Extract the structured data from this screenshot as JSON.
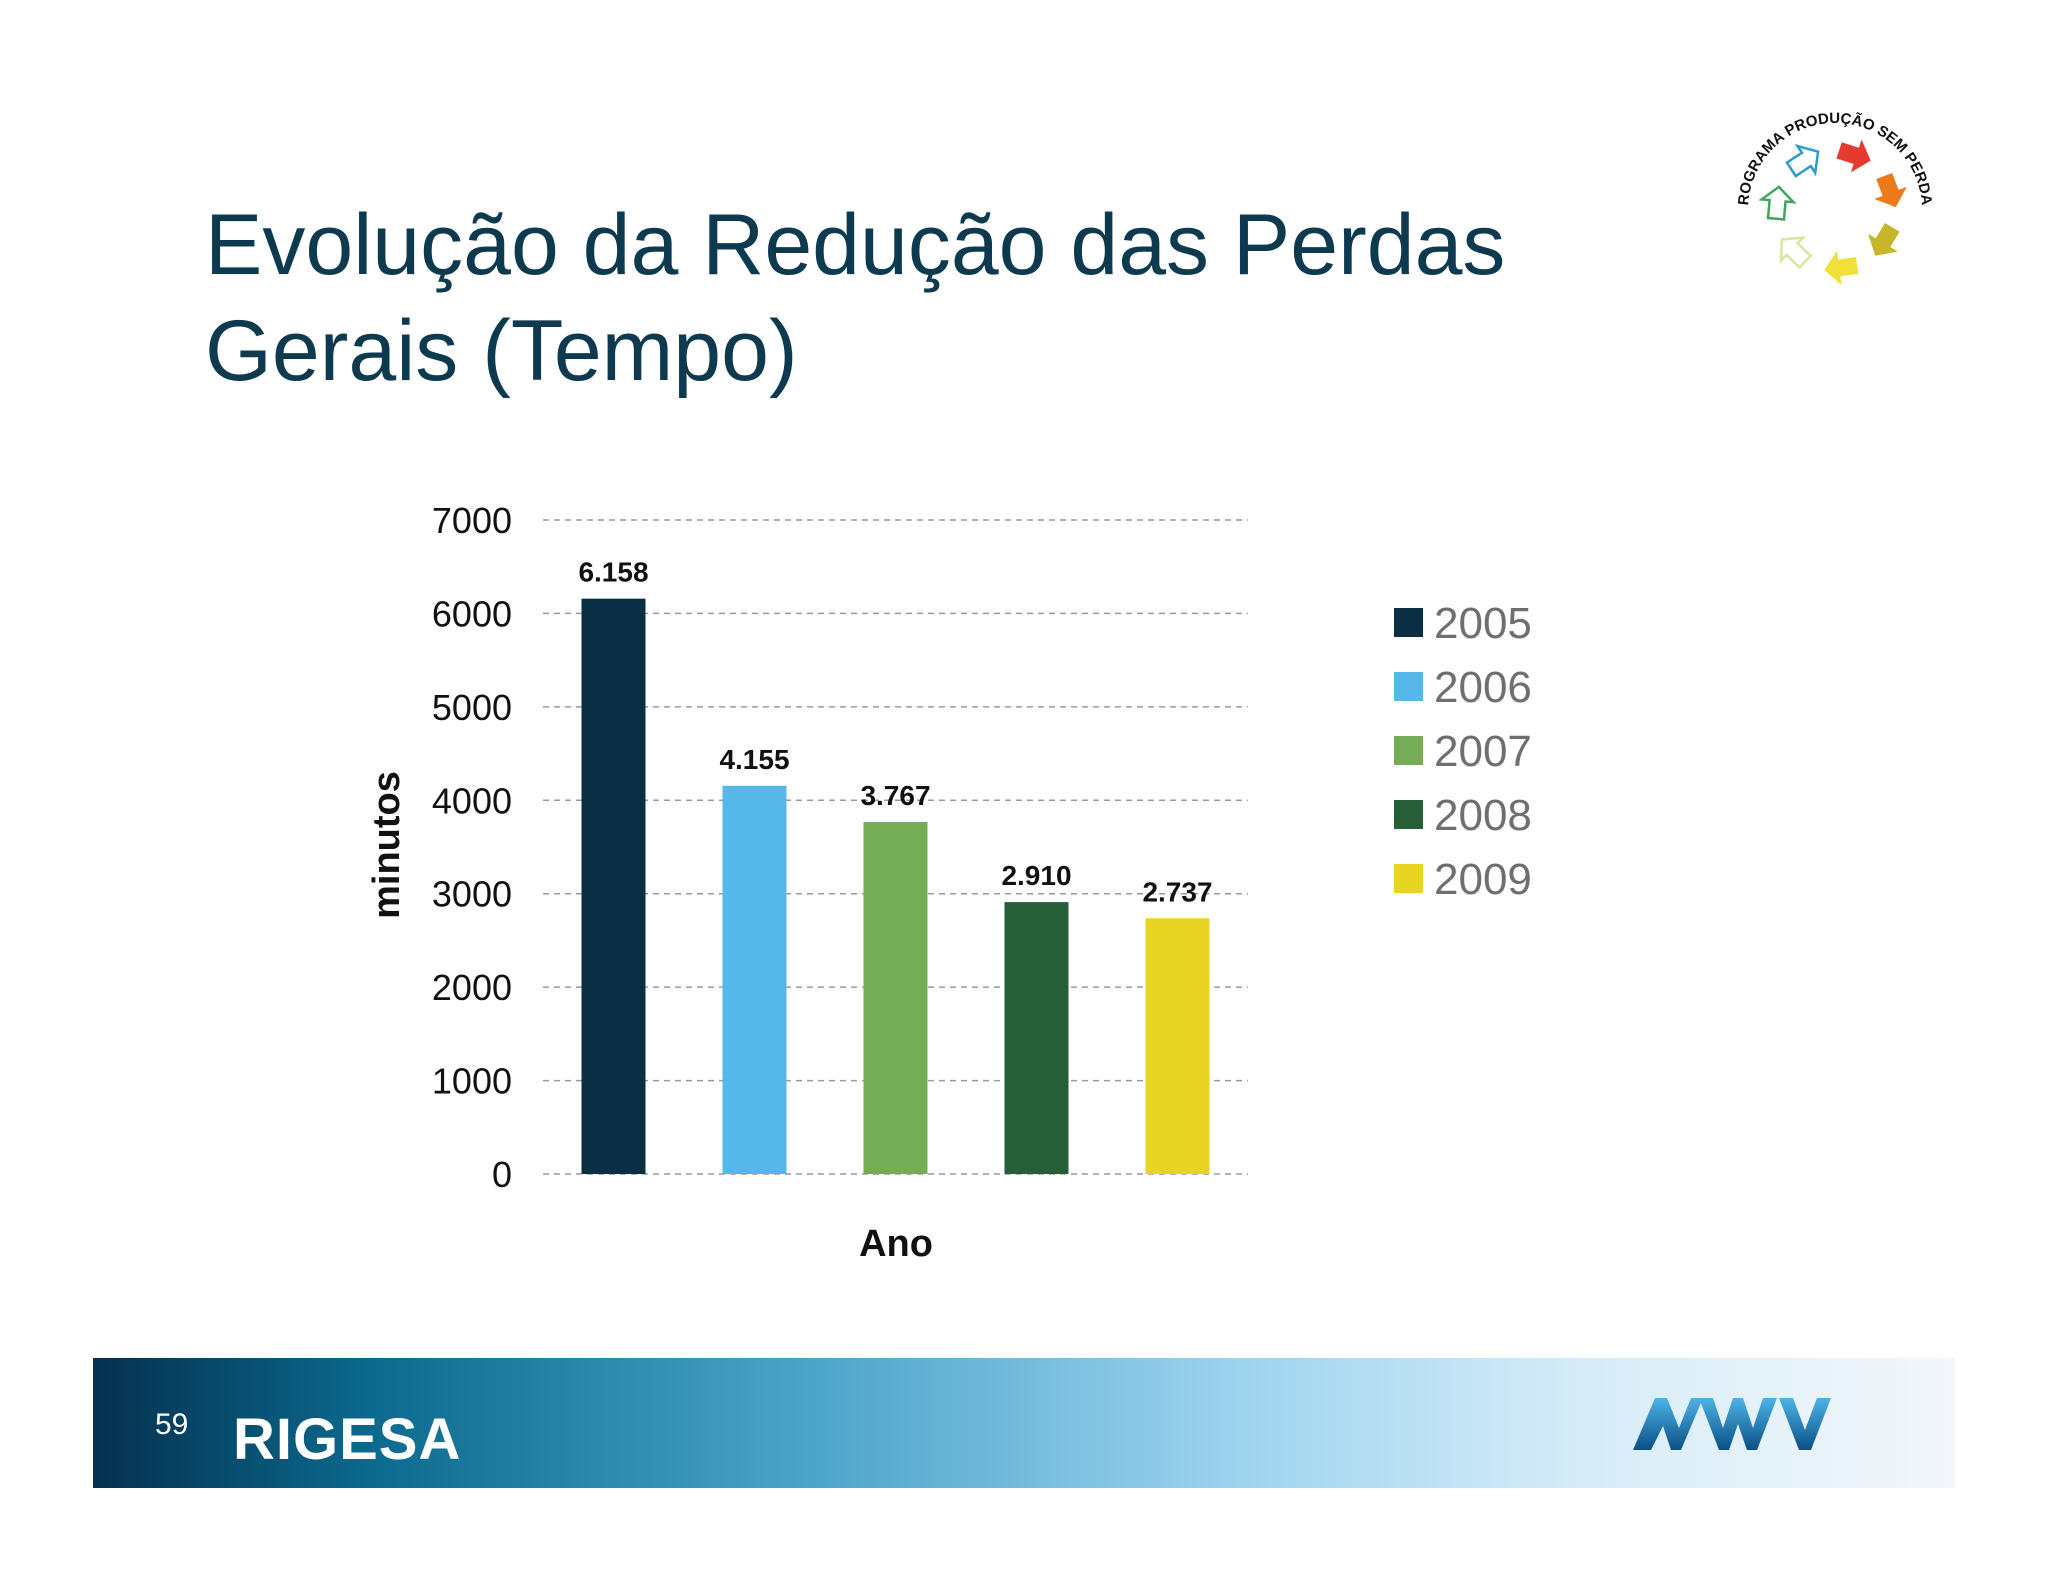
{
  "title": {
    "line1": "Evolução da Redução das Perdas",
    "line2": "Gerais  (Tempo)"
  },
  "logo": {
    "text": "PROGRAMA PRODUÇÃO SEM PERDAS",
    "arrow_colors": [
      "#e63a2e",
      "#ec7a18",
      "#c7b52a",
      "#f1df3a",
      "#d7e7a0",
      "#3fa55b",
      "#2b9ad0"
    ]
  },
  "chart_data": {
    "type": "bar",
    "categories": [
      "2005",
      "2006",
      "2007",
      "2008",
      "2009"
    ],
    "values": [
      6158,
      4155,
      3767,
      2910,
      2737
    ],
    "data_labels": [
      "6.158",
      "4.155",
      "3.767",
      "2.910",
      "2.737"
    ],
    "colors": [
      "#0a2f45",
      "#55b8e8",
      "#74ad56",
      "#255e37",
      "#e8d523"
    ],
    "xlabel": "Ano",
    "ylabel": "minutos",
    "ylim": [
      0,
      7000
    ],
    "yticks": [
      0,
      1000,
      2000,
      3000,
      4000,
      5000,
      6000,
      7000
    ],
    "grid": true,
    "grid_style": "dashed",
    "legend": [
      "2005",
      "2006",
      "2007",
      "2008",
      "2009"
    ],
    "legend_position": "right"
  },
  "footer": {
    "page_number": "59",
    "brand_left": "RIGESA",
    "brand_right": "MWV"
  }
}
